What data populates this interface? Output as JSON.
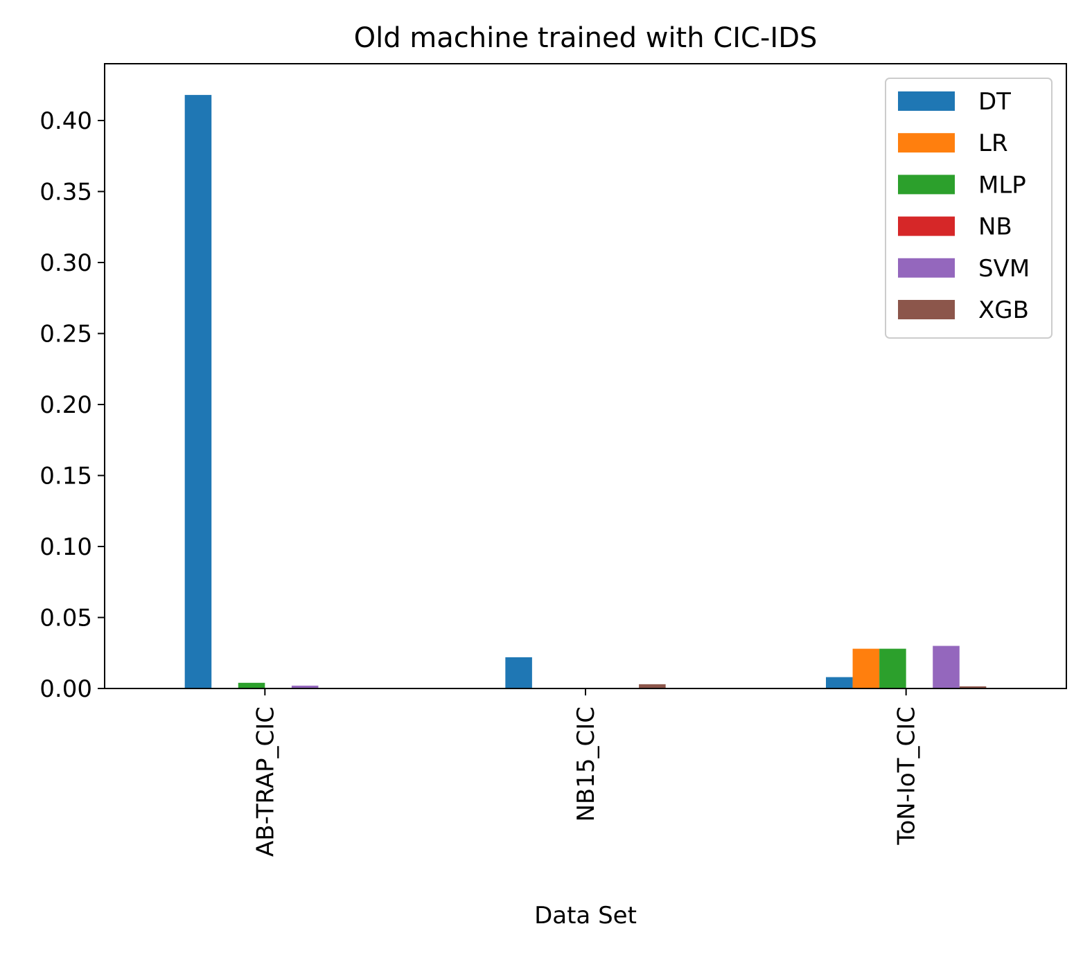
{
  "chart_data": {
    "type": "bar",
    "title": "Old machine trained with CIC-IDS",
    "xlabel": "Data Set",
    "ylabel": "",
    "categories": [
      "AB-TRAP_CIC",
      "NB15_CIC",
      "ToN-IoT_CIC"
    ],
    "ylim": [
      0,
      0.44
    ],
    "yticks": [
      "0.00",
      "0.05",
      "0.10",
      "0.15",
      "0.20",
      "0.25",
      "0.30",
      "0.35",
      "0.40"
    ],
    "grid": false,
    "legend_position": "top-right",
    "series": [
      {
        "name": "DT",
        "color": "#1f77b4",
        "values": [
          0.418,
          0.022,
          0.008
        ]
      },
      {
        "name": "LR",
        "color": "#ff7f0e",
        "values": [
          0.0,
          0.0,
          0.028
        ]
      },
      {
        "name": "MLP",
        "color": "#2ca02c",
        "values": [
          0.004,
          0.0,
          0.028
        ]
      },
      {
        "name": "NB",
        "color": "#d62728",
        "values": [
          0.0,
          0.0,
          0.0
        ]
      },
      {
        "name": "SVM",
        "color": "#9467bd",
        "values": [
          0.002,
          0.0,
          0.03
        ]
      },
      {
        "name": "XGB",
        "color": "#8c564b",
        "values": [
          0.0,
          0.003,
          0.0015
        ]
      }
    ]
  }
}
